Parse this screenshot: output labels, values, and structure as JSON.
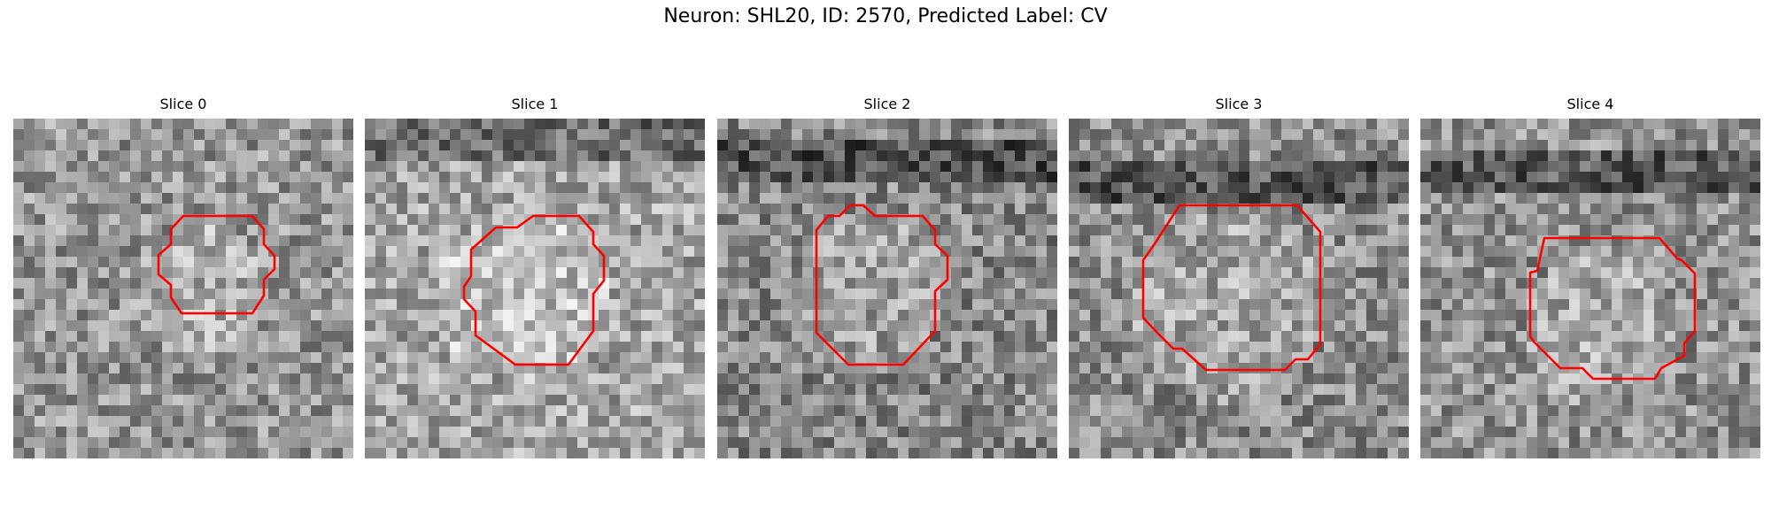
{
  "figure": {
    "title": "Neuron: SHL20, ID: 2570, Predicted Label: CV"
  },
  "contour_color": "#ff0000",
  "slices": [
    {
      "label": "Slice 0"
    },
    {
      "label": "Slice 1"
    },
    {
      "label": "Slice 2"
    },
    {
      "label": "Slice 3"
    },
    {
      "label": "Slice 4"
    }
  ]
}
